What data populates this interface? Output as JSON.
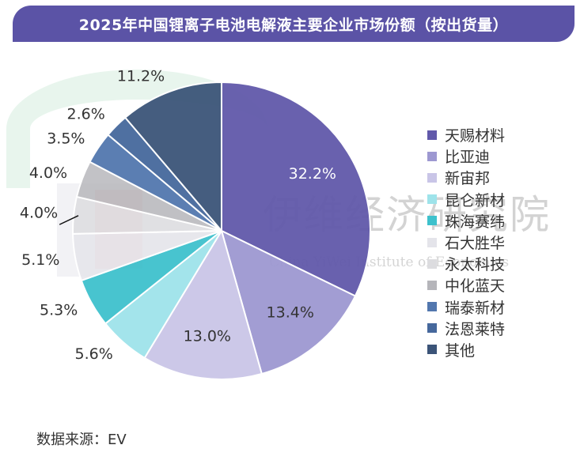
{
  "chart_data": {
    "type": "pie",
    "title": "2025年中国锂离子电池电解液主要企业市场份额（按出货量）",
    "categories": [
      "天赐材料",
      "比亚迪",
      "新宙邦",
      "昆仑新材",
      "珠海赛纬",
      "石大胜华",
      "永太科技",
      "中化蓝天",
      "瑞泰新材",
      "法恩莱特",
      "其他"
    ],
    "values": [
      32.2,
      13.4,
      13.0,
      5.6,
      5.3,
      5.1,
      4.0,
      4.0,
      3.5,
      2.6,
      11.2
    ],
    "labels": [
      "32.2%",
      "13.4%",
      "13.0%",
      "5.6%",
      "5.3%",
      "5.1%",
      "4.0%",
      "4.0%",
      "3.5%",
      "2.6%",
      "11.2%"
    ],
    "colors": [
      "#6159aa",
      "#9d98d1",
      "#c9c5e7",
      "#9ee3ea",
      "#3ec1cc",
      "#e4e4ea",
      "#dcdcdf",
      "#b5b5ba",
      "#5277ae",
      "#46689c",
      "#3b5478"
    ],
    "legend_placement": "right",
    "grid": false
  },
  "watermark": {
    "text_cn": "伊维经济研究院",
    "text_en": "China YiWei Institute of Economics",
    "logo_cn": "伊维智库"
  },
  "source": "数据来源：EV"
}
